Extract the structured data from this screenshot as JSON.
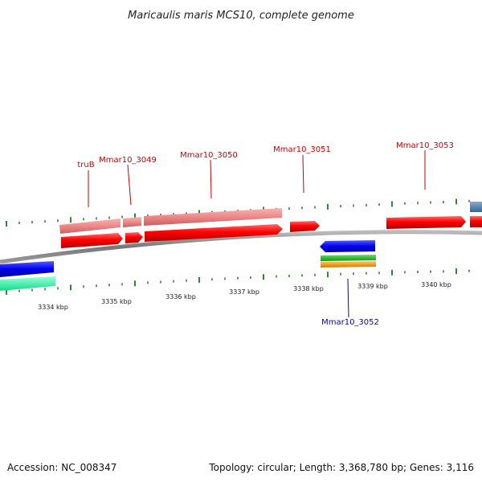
{
  "title": "Maricaulis maris MCS10, complete genome",
  "colors": {
    "forward_gene": "#ff0000",
    "forward_cds": "#f08080",
    "reverse_gene": "#0000ee",
    "reverse_green": "#22bb22",
    "reverse_orange": "#ff9900",
    "teal": "#33ffaa",
    "steel": "#5588bb",
    "label_red": "#cc0000",
    "label_blue": "#0000cc",
    "tick_green": "#006600",
    "backbone": "#888888"
  },
  "genes_top": [
    {
      "name": "truB"
    },
    {
      "name": "Mmar10_3049"
    },
    {
      "name": "Mmar10_3050"
    },
    {
      "name": "Mmar10_3051"
    },
    {
      "name": "Mmar10_3053"
    }
  ],
  "genes_bottom": [
    {
      "name": "Mmar10_3052"
    }
  ],
  "kbp_labels": [
    "3334 kbp",
    "3335 kbp",
    "3336 kbp",
    "3337 kbp",
    "3338 kbp",
    "3339 kbp",
    "3340 kbp"
  ],
  "footer": {
    "accession": "Accession: NC_008347",
    "summary": "Topology: circular; Length: 3,368,780 bp; Genes: 3,116"
  }
}
